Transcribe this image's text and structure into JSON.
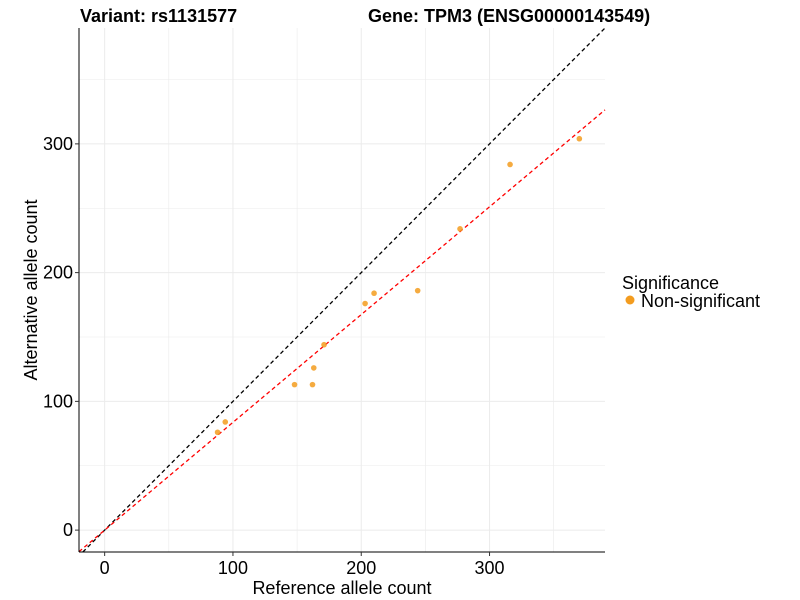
{
  "chart_data": {
    "type": "scatter",
    "title_left": "Variant: rs1131577",
    "title_right": "Gene: TPM3 (ENSG00000143549)",
    "xlabel": "Reference allele count",
    "ylabel": "Alternative allele count",
    "xlim": [
      -20,
      390
    ],
    "ylim": [
      -17,
      390
    ],
    "x_ticks": [
      0,
      100,
      200,
      300
    ],
    "y_ticks": [
      0,
      100,
      200,
      300
    ],
    "x_tick_labels": [
      "0",
      "100",
      "200",
      "300"
    ],
    "y_tick_labels": [
      "0",
      "100",
      "200",
      "300"
    ],
    "grid": true,
    "legend": {
      "title": "Significance",
      "position": "right",
      "entries": [
        {
          "label": "Non-significant",
          "color": "#f39c1f"
        }
      ]
    },
    "series": [
      {
        "name": "Non-significant",
        "color": "#f39c1f",
        "points": [
          {
            "x": 88,
            "y": 76
          },
          {
            "x": 94,
            "y": 84
          },
          {
            "x": 148,
            "y": 113
          },
          {
            "x": 162,
            "y": 113
          },
          {
            "x": 163,
            "y": 126
          },
          {
            "x": 171,
            "y": 144
          },
          {
            "x": 203,
            "y": 176
          },
          {
            "x": 210,
            "y": 184
          },
          {
            "x": 244,
            "y": 186
          },
          {
            "x": 277,
            "y": 234
          },
          {
            "x": 316,
            "y": 284
          },
          {
            "x": 370,
            "y": 304
          }
        ]
      }
    ],
    "reference_lines": [
      {
        "name": "identity",
        "color": "#000000",
        "dashed": true,
        "slope": 1.0,
        "intercept": 0
      },
      {
        "name": "fit",
        "color": "#ff0000",
        "dashed": true,
        "slope": 0.837,
        "intercept": 0
      }
    ]
  }
}
